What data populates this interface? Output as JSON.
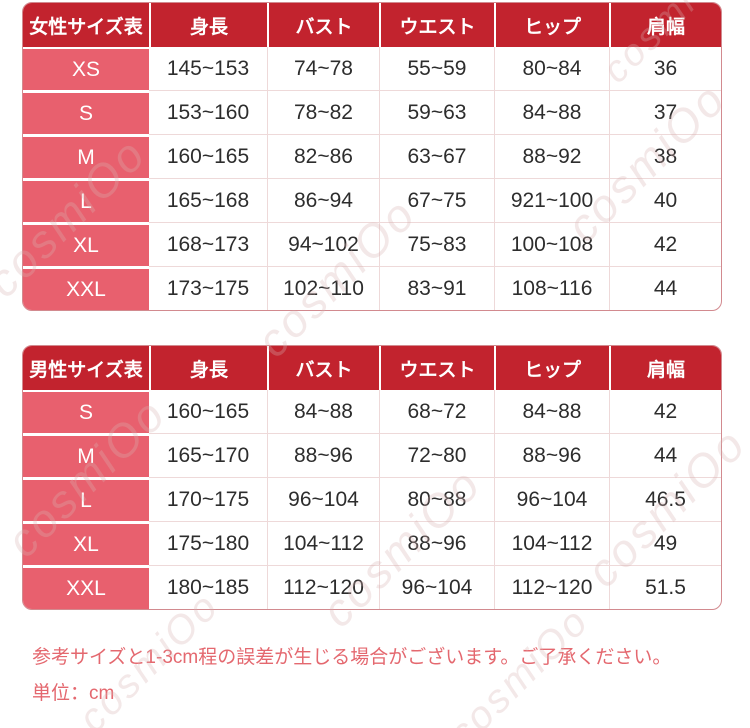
{
  "colors": {
    "header_bg": "#c2232e",
    "size_cell_bg": "#e8606e",
    "value_text": "#2d2d2d",
    "divider": "#eed9d9",
    "card_border": "#d28a8f",
    "note_text": "#e4686f"
  },
  "watermark_text": "cosmiOo",
  "women_table": {
    "headers": [
      "女性サイズ表",
      "身長",
      "バスト",
      "ウエスト",
      "ヒップ",
      "肩幅"
    ],
    "rows": [
      [
        "XS",
        "145~153",
        "74~78",
        "55~59",
        "80~84",
        "36"
      ],
      [
        "S",
        "153~160",
        "78~82",
        "59~63",
        "84~88",
        "37"
      ],
      [
        "M",
        "160~165",
        "82~86",
        "63~67",
        "88~92",
        "38"
      ],
      [
        "L",
        "165~168",
        "86~94",
        "67~75",
        "921~100",
        "40"
      ],
      [
        "XL",
        "168~173",
        "94~102",
        "75~83",
        "100~108",
        "42"
      ],
      [
        "XXL",
        "173~175",
        "102~110",
        "83~91",
        "108~116",
        "44"
      ]
    ]
  },
  "men_table": {
    "headers": [
      "男性サイズ表",
      "身長",
      "バスト",
      "ウエスト",
      "ヒップ",
      "肩幅"
    ],
    "rows": [
      [
        "S",
        "160~165",
        "84~88",
        "68~72",
        "84~88",
        "42"
      ],
      [
        "M",
        "165~170",
        "88~96",
        "72~80",
        "88~96",
        "44"
      ],
      [
        "L",
        "170~175",
        "96~104",
        "80~88",
        "96~104",
        "46.5"
      ],
      [
        "XL",
        "175~180",
        "104~112",
        "88~96",
        "104~112",
        "49"
      ],
      [
        "XXL",
        "180~185",
        "112~120",
        "96~104",
        "112~120",
        "51.5"
      ]
    ]
  },
  "notes": {
    "line1": "参考サイズと1-3cm程の誤差が生じる場合がございます。ご了承ください。",
    "line2": "単位：cm"
  }
}
